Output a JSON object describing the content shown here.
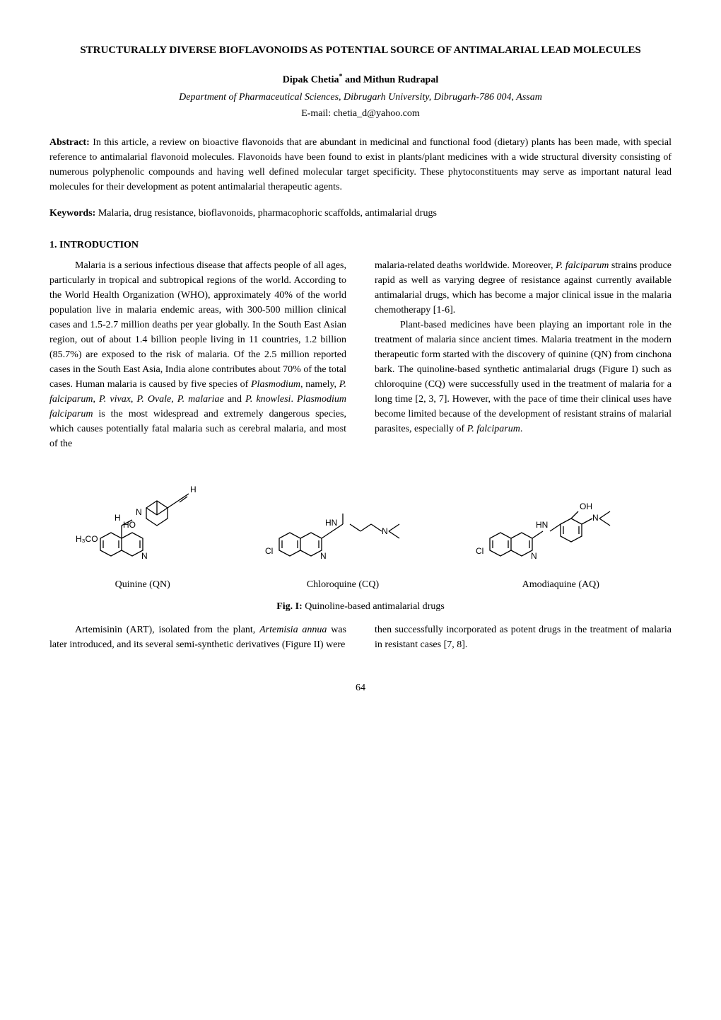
{
  "title": "STRUCTURALLY DIVERSE BIOFLAVONOIDS AS POTENTIAL SOURCE OF ANTIMALARIAL LEAD MOLECULES",
  "authors_html": "Dipak Chetia<sup>*</sup> and Mithun Rudrapal",
  "affiliation": "Department of Pharmaceutical Sciences, Dibrugarh University, Dibrugarh-786 004, Assam",
  "email": "E-mail: chetia_d@yahoo.com",
  "abstract": {
    "label": "Abstract:",
    "text": " In this article, a review on bioactive flavonoids that are abundant in medicinal and functional food (dietary) plants has been made, with special reference to antimalarial flavonoid molecules. Flavonoids have been found to exist in plants/plant medicines with a wide structural diversity consisting of numerous polyphenolic compounds and having well defined molecular target specificity. These phytoconstituents may serve as important natural lead molecules for their development as potent antimalarial therapeutic agents."
  },
  "keywords": {
    "label": "Keywords:",
    "text": " Malaria, drug resistance, bioflavonoids, pharmacophoric scaffolds, antimalarial drugs"
  },
  "section1": {
    "heading": "1. INTRODUCTION",
    "col1_p1_start": "Malaria is a serious infectious disease that affects people of all ages, particularly in tropical and subtropical regions of the world. According to the World Health Organization (WHO), approximately 40% of the world population live in malaria endemic areas, with 300-500 million clinical cases and 1.5-2.7 million deaths per year globally. In the South East Asian region, out of about 1.4 billion people living in 11 countries, 1.2 billion (85.7%) are exposed to the risk of malaria. Of the 2.5 million reported cases in the South East Asia, India alone contributes about 70% of the total cases. Human malaria is caused by five species of ",
    "col1_p1_italic1": "Plasmodium",
    "col1_p1_mid1": ", namely, ",
    "col1_p1_italic2": "P. falciparum",
    "col1_p1_mid2": ", ",
    "col1_p1_italic3": "P. vivax",
    "col1_p1_mid3": ", ",
    "col1_p1_italic4": "P. Ovale, P. malariae",
    "col1_p1_mid4": " and ",
    "col1_p1_italic5": "P. knowlesi",
    "col1_p1_mid5": ". ",
    "col1_p1_italic6": "Plasmodium falciparum",
    "col1_p1_end": " is the most widespread and extremely dangerous species, which causes potentially fatal malaria such as cerebral malaria, and most of the",
    "col2_p1_start": "malaria-related deaths worldwide. Moreover, ",
    "col2_p1_italic1": "P. falciparum",
    "col2_p1_end": " strains produce rapid as well as varying degree of resistance against currently available antimalarial drugs, which has become a major clinical issue in the malaria chemotherapy [1-6].",
    "col2_p2_start": "Plant-based medicines have been playing an important role in the treatment of malaria since ancient times. Malaria treatment in the modern therapeutic form started with the discovery of quinine (QN) from cinchona bark. The quinoline-based synthetic antimalarial drugs (Figure I) such as chloroquine (CQ) were successfully used in the treatment of malaria for a long time [2, 3, 7]. However, with the pace of time their clinical uses have become limited because of the development of resistant strains of malarial parasites, especially of ",
    "col2_p2_italic1": "P. falciparum",
    "col2_p2_end": "."
  },
  "figure1": {
    "structures": [
      {
        "label": "Quinine (QN)"
      },
      {
        "label": "Chloroquine (CQ)"
      },
      {
        "label": "Amodiaquine (AQ)"
      }
    ],
    "caption_label": "Fig. I:",
    "caption_text": "   Quinoline-based antimalarial drugs"
  },
  "section1_cont": {
    "col1_p1_start": "Artemisinin (ART), isolated from the plant, ",
    "col1_p1_italic1": "Artemisia annua",
    "col1_p1_end": " was later introduced, and its several semi-synthetic derivatives (Figure II) were",
    "col2_p1": "then successfully incorporated as potent drugs in the treatment of malaria in resistant cases [7, 8]."
  },
  "page_number": "64",
  "colors": {
    "text": "#000000",
    "background": "#ffffff"
  }
}
